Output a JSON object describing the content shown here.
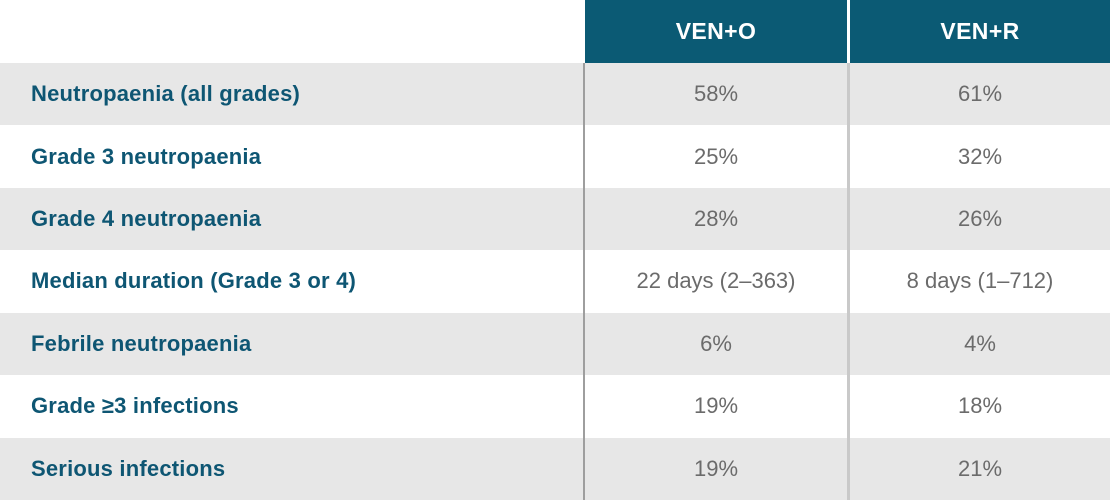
{
  "colors": {
    "header_bg": "#0b5a74",
    "header_text": "#ffffff",
    "label_text": "#0e5673",
    "data_text": "#6b6b6b",
    "row_stripe": "#e7e7e7",
    "row_plain": "#ffffff",
    "separator_label": "#9e9e9e",
    "separator_data": "#c9c9c9"
  },
  "chart_data": {
    "type": "table",
    "columns": [
      "",
      "VEN+O",
      "VEN+R"
    ],
    "rows": [
      [
        "Neutropaenia (all grades)",
        "58%",
        "61%"
      ],
      [
        "Grade 3 neutropaenia",
        "25%",
        "32%"
      ],
      [
        "Grade 4 neutropaenia",
        "28%",
        "26%"
      ],
      [
        "Median duration (Grade 3 or 4)",
        "22 days (2–363)",
        "8 days (1–712)"
      ],
      [
        "Febrile neutropaenia",
        "6%",
        "4%"
      ],
      [
        "Grade ≥3 infections",
        "19%",
        "18%"
      ],
      [
        "Serious infections",
        "19%",
        "21%"
      ]
    ],
    "title": "",
    "legend": false,
    "grid": false,
    "layout_hint": "striped comparison table, label column left, two centered value columns"
  }
}
